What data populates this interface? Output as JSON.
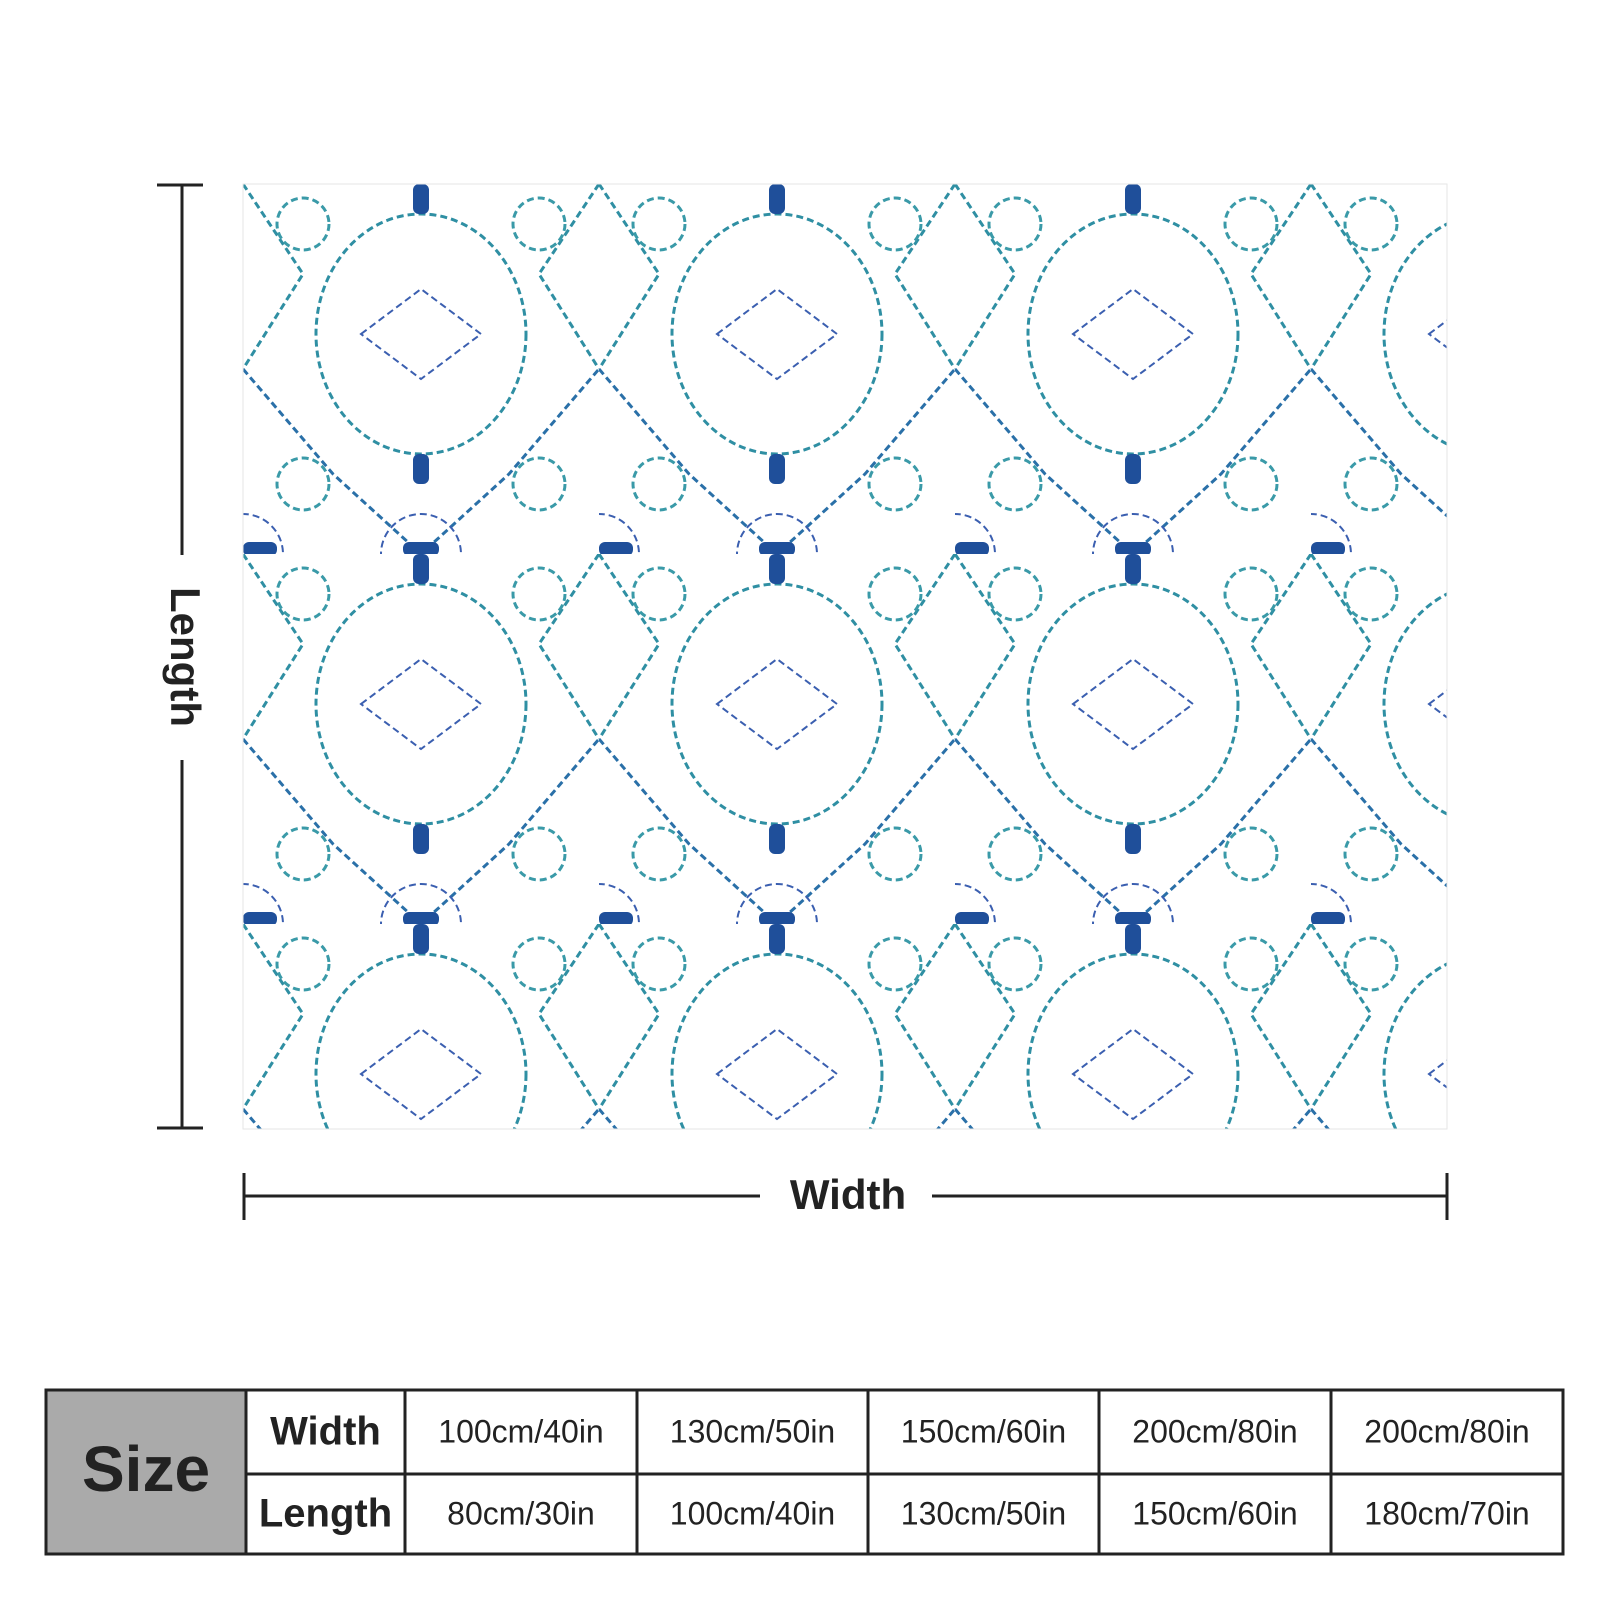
{
  "dimension_labels": {
    "length": "Length",
    "width": "Width"
  },
  "size_table": {
    "header": "Size",
    "rows": [
      {
        "label": "Width",
        "values": [
          "100cm/40in",
          "130cm/50in",
          "150cm/60in",
          "200cm/80in",
          "200cm/80in"
        ]
      },
      {
        "label": "Length",
        "values": [
          "80cm/30in",
          "100cm/40in",
          "130cm/50in",
          "150cm/60in",
          "180cm/70in"
        ]
      }
    ]
  }
}
